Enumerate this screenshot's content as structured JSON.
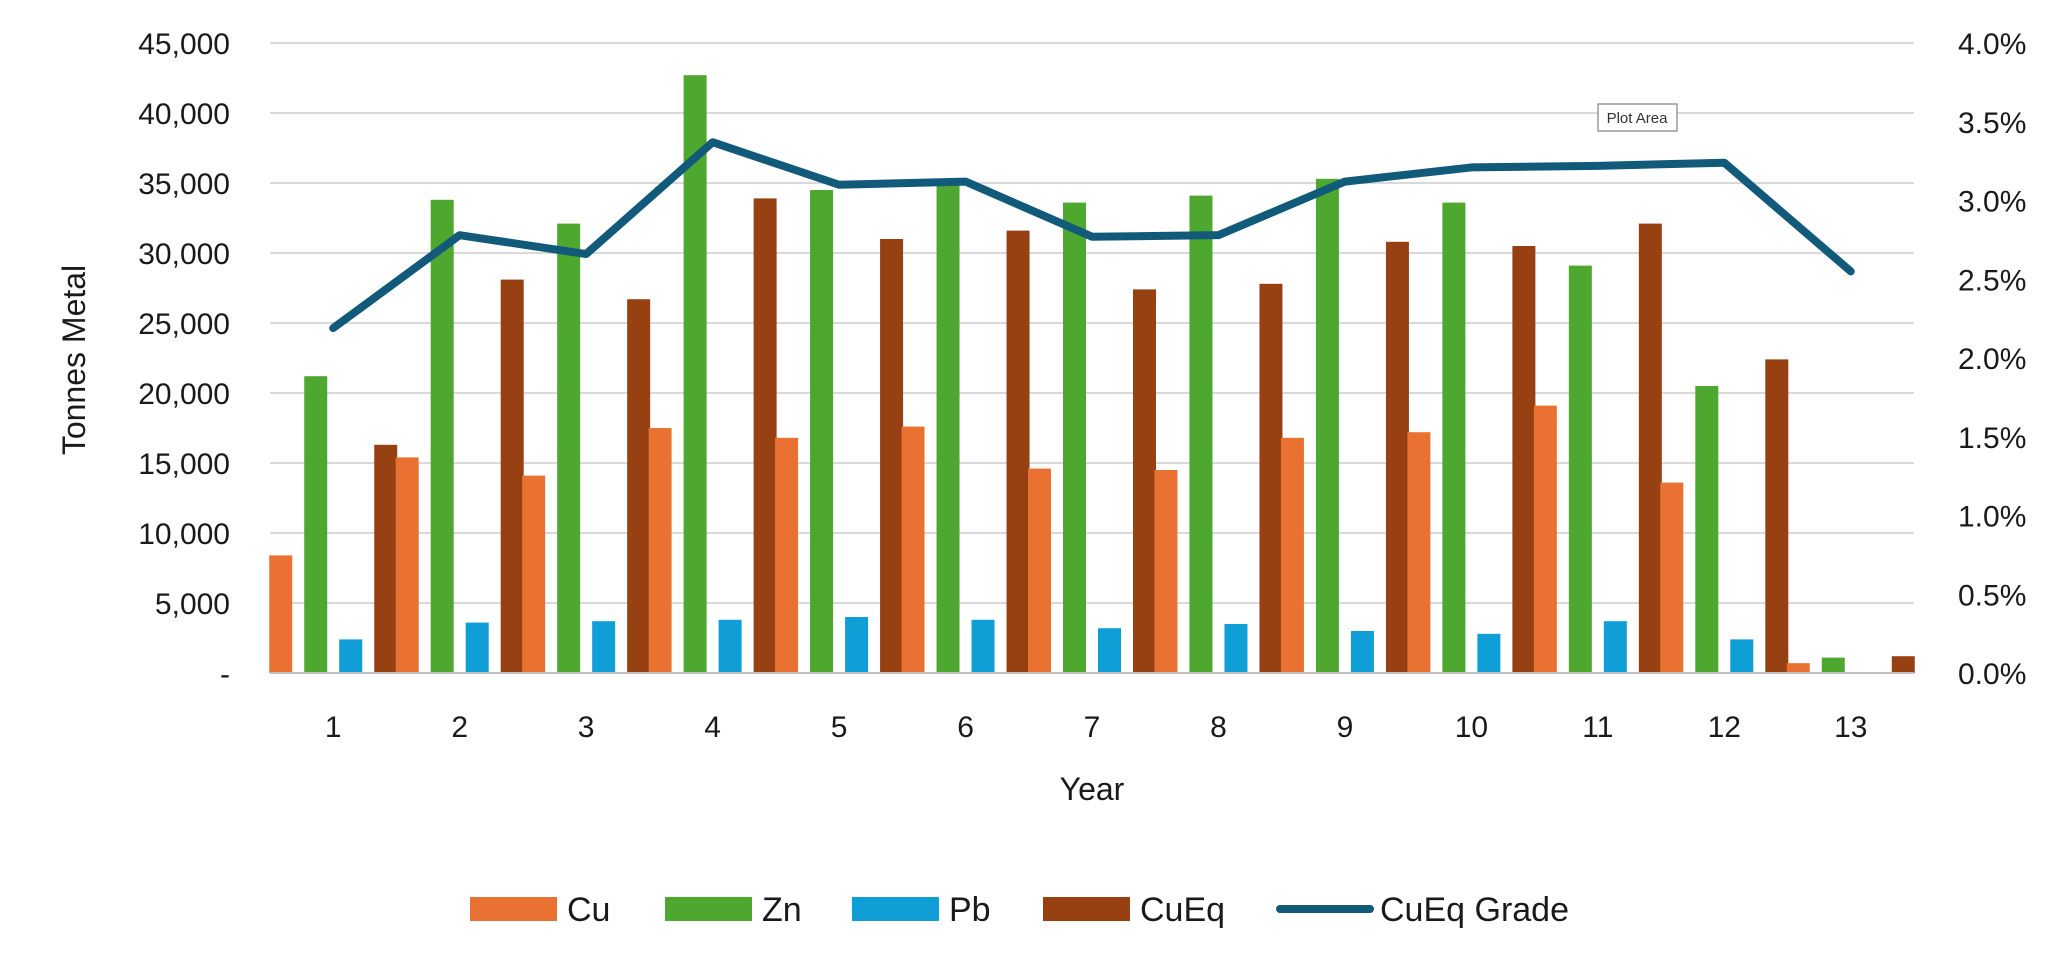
{
  "chart_data": {
    "type": "bar",
    "categories": [
      "1",
      "2",
      "3",
      "4",
      "5",
      "6",
      "7",
      "8",
      "9",
      "10",
      "11",
      "12",
      "13"
    ],
    "series": [
      {
        "name": "Cu",
        "type": "bar",
        "axis": "left",
        "color": "#E97132",
        "values": [
          8400,
          15400,
          14100,
          17500,
          16800,
          17600,
          14600,
          14500,
          16800,
          17200,
          19100,
          13600,
          700
        ]
      },
      {
        "name": "Zn",
        "type": "bar",
        "axis": "left",
        "color": "#4EA72E",
        "values": [
          21200,
          33800,
          32100,
          42700,
          34500,
          34900,
          33600,
          34100,
          35300,
          33600,
          29100,
          20500,
          1100
        ]
      },
      {
        "name": "Pb",
        "type": "bar",
        "axis": "left",
        "color": "#0F9ED5",
        "values": [
          2400,
          3600,
          3700,
          3800,
          4000,
          3800,
          3200,
          3500,
          3000,
          2800,
          3700,
          2400,
          0
        ]
      },
      {
        "name": "CuEq",
        "type": "bar",
        "axis": "left",
        "color": "#974012",
        "values": [
          16300,
          28100,
          26700,
          33900,
          31000,
          31600,
          27400,
          27800,
          30800,
          30500,
          32100,
          22400,
          1200
        ]
      },
      {
        "name": "CuEq Grade",
        "type": "line",
        "axis": "right",
        "color": "#115A7A",
        "values": [
          0.0219,
          0.0278,
          0.0266,
          0.0337,
          0.031,
          0.0312,
          0.0277,
          0.0278,
          0.0312,
          0.0321,
          0.0322,
          0.0324,
          0.0255
        ]
      }
    ],
    "xlabel": "Year",
    "ylabel": "Tonnes Metal",
    "ylim": [
      0,
      45000
    ],
    "y2lim": [
      0,
      0.04
    ],
    "yticks": [
      "-",
      "5,000",
      "10,000",
      "15,000",
      "20,000",
      "25,000",
      "30,000",
      "35,000",
      "40,000",
      "45,000"
    ],
    "y2ticks": [
      "0.0%",
      "0.5%",
      "1.0%",
      "1.5%",
      "2.0%",
      "2.5%",
      "3.0%",
      "3.5%",
      "4.0%"
    ],
    "grid": true,
    "legend": "bottom",
    "gridline_color": "#d9d9d9"
  },
  "tooltip": {
    "label": "Plot Area"
  }
}
